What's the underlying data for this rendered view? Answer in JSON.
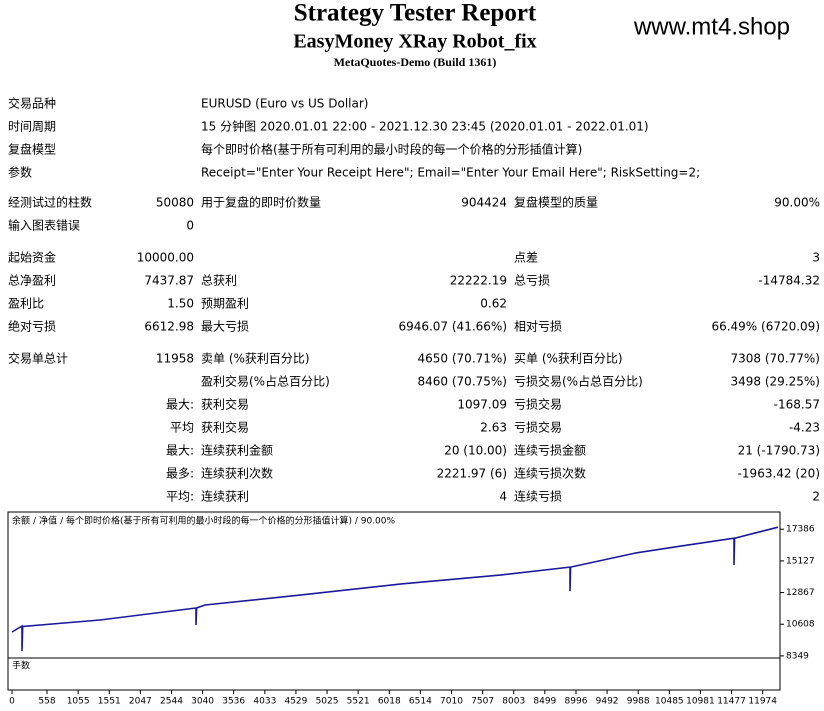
{
  "header": {
    "title": "Strategy Tester Report",
    "subtitle": "EasyMoney XRay Robot_fix",
    "server": "MetaQuotes-Demo (Build 1361)",
    "watermark": "www.mt4.shop"
  },
  "table": {
    "rows": [
      [
        "交易品种",
        "EURUSD (Euro vs US Dollar)"
      ],
      [
        "时间周期",
        "15 分钟图 2020.01.01 22:00 - 2021.12.30 23:45 (2020.01.01 - 2022.01.01)"
      ],
      [
        "复盘模型",
        "每个即时价格(基于所有可利用的最小时段的每一个价格的分形插值计算)"
      ],
      [
        "参数",
        "Receipt=\"Enter Your Receipt Here\"; Email=\"Enter Your Email Here\"; RiskSetting=2;"
      ],
      [
        "经测试过的柱数",
        "50080",
        "用于复盘的即时价数量",
        "904424",
        "复盘模型的质量",
        "90.00%"
      ],
      [
        "输入图表错误",
        "0",
        null,
        null,
        null,
        null
      ],
      [
        "起始资金",
        "10000.00",
        null,
        null,
        "点差",
        "3"
      ],
      [
        "总净盈利",
        "7437.87",
        "总获利",
        "22222.19",
        "总亏损",
        "-14784.32"
      ],
      [
        "盈利比",
        "1.50",
        "预期盈利",
        "0.62",
        null,
        null
      ],
      [
        "绝对亏损",
        "6612.98",
        "最大亏损",
        "6946.07 (41.66%)",
        "相对亏损",
        "66.49% (6720.09)"
      ],
      [
        "交易单总计",
        "11958",
        "卖单 (%获利百分比)",
        "4650 (70.71%)",
        "买单 (%获利百分比)",
        "7308 (70.77%)"
      ],
      [
        null,
        null,
        "盈利交易(%占总百分比)",
        "8460 (70.75%)",
        "亏损交易(%占总百分比)",
        "3498 (29.25%)"
      ],
      [
        null,
        "最大:",
        "获利交易",
        "1097.09",
        "亏损交易",
        "-168.57"
      ],
      [
        null,
        "平均",
        "获利交易",
        "2.63",
        "亏损交易",
        "-4.23"
      ],
      [
        null,
        "最大:",
        "连续获利金额",
        "20 (10.00)",
        "连续亏损金额",
        "21 (-1790.73)"
      ],
      [
        null,
        "最多:",
        "连续获利次数",
        "2221.97 (6)",
        "连续亏损次数",
        "-1963.42 (20)"
      ],
      [
        null,
        "平均:",
        "连续获利",
        "4",
        "连续亏损",
        "2"
      ]
    ]
  },
  "chart_data": {
    "type": "line",
    "legend_separator": "/",
    "legend_suffix": "/ 每个即时价格(基于所有可利用的最小时段的每一个价格的分形插值计算) / 90.00%",
    "lower_panel_label": "手数",
    "x": [
      0,
      160,
      160,
      170,
      1404,
      2935,
      2935,
      2945,
      3078,
      4594,
      6189,
      7784,
      8900,
      8900,
      8910,
      9937,
      10655,
      11516,
      11516,
      11526,
      12218
    ],
    "series": [
      {
        "name": "余额",
        "color": "#1a1a99",
        "values": [
          10057,
          10484,
          8705,
          10450,
          10911,
          11765,
          10555,
          11765,
          11979,
          12690,
          13473,
          14114,
          14683,
          12975,
          14683,
          15680,
          16178,
          16747,
          14826,
          16747,
          17530
        ]
      },
      {
        "name": "净值",
        "color": "#1f9a1f"
      }
    ],
    "xlim": [
      0,
      12250
    ],
    "ylim": [
      8200,
      18400
    ],
    "xticks": [
      0,
      558,
      1055,
      1551,
      2047,
      2544,
      3040,
      3536,
      4033,
      4529,
      5025,
      5521,
      6018,
      6514,
      7010,
      7507,
      8003,
      8499,
      8996,
      9492,
      9988,
      10485,
      10981,
      11477,
      11974
    ],
    "yticks": [
      8349,
      10608,
      12867,
      15127,
      17386
    ]
  }
}
